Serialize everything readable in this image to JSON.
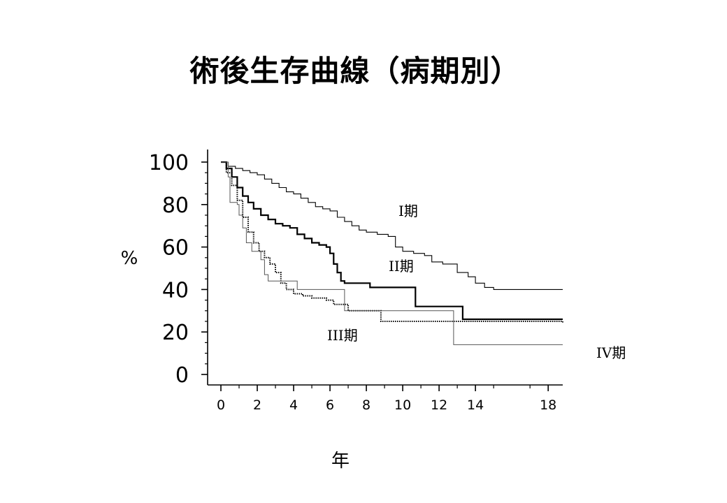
{
  "title": "術後生存曲線（病期別）",
  "chart_data": {
    "type": "line",
    "step": true,
    "title": "術後生存曲線（病期別）",
    "xlabel": "年",
    "ylabel": "%",
    "xlim": [
      0,
      18.8
    ],
    "ylim": [
      0,
      100
    ],
    "x_ticks": [
      0,
      2,
      4,
      6,
      8,
      10,
      12,
      14,
      18
    ],
    "x_tick_labels": [
      "0",
      "2",
      "4",
      "6",
      "8",
      "10",
      "12",
      "14",
      "18"
    ],
    "y_ticks": [
      0,
      20,
      40,
      60,
      80,
      100
    ],
    "y_tick_labels": [
      "0",
      "20",
      "40",
      "60",
      "80",
      "100"
    ],
    "grid": false,
    "legend": "none (inline labels)",
    "series": [
      {
        "name": "I期",
        "color": "#000000",
        "style": "thin-solid",
        "points": [
          [
            0,
            100
          ],
          [
            0.4,
            98
          ],
          [
            0.8,
            97
          ],
          [
            1.2,
            96
          ],
          [
            1.6,
            95
          ],
          [
            2,
            94
          ],
          [
            2.4,
            92
          ],
          [
            2.8,
            90
          ],
          [
            3.2,
            88
          ],
          [
            3.6,
            86
          ],
          [
            4,
            85
          ],
          [
            4.4,
            83
          ],
          [
            4.8,
            81
          ],
          [
            5.2,
            79
          ],
          [
            5.6,
            78
          ],
          [
            6,
            77
          ],
          [
            6.4,
            74
          ],
          [
            6.8,
            72
          ],
          [
            7.2,
            70
          ],
          [
            7.6,
            68
          ],
          [
            8,
            67
          ],
          [
            8.6,
            66
          ],
          [
            9.2,
            65
          ],
          [
            9.6,
            60
          ],
          [
            10,
            58
          ],
          [
            10.6,
            57
          ],
          [
            11.2,
            56
          ],
          [
            11.6,
            53
          ],
          [
            12.2,
            52
          ],
          [
            13,
            48
          ],
          [
            13.6,
            46
          ],
          [
            14,
            43
          ],
          [
            14.5,
            41
          ],
          [
            15,
            40
          ],
          [
            18.8,
            40
          ]
        ]
      },
      {
        "name": "II期",
        "color": "#000000",
        "style": "thick-solid",
        "points": [
          [
            0,
            100
          ],
          [
            0.3,
            97
          ],
          [
            0.6,
            93
          ],
          [
            0.9,
            88
          ],
          [
            1.2,
            84
          ],
          [
            1.5,
            81
          ],
          [
            1.8,
            78
          ],
          [
            2.2,
            75
          ],
          [
            2.6,
            73
          ],
          [
            3,
            71
          ],
          [
            3.4,
            70
          ],
          [
            3.8,
            69
          ],
          [
            4.2,
            66
          ],
          [
            4.6,
            64
          ],
          [
            5,
            62
          ],
          [
            5.4,
            61
          ],
          [
            5.8,
            60
          ],
          [
            6,
            57
          ],
          [
            6.2,
            52
          ],
          [
            6.4,
            48
          ],
          [
            6.6,
            44
          ],
          [
            6.8,
            43
          ],
          [
            8.2,
            41
          ],
          [
            10.6,
            41
          ],
          [
            10.7,
            32
          ],
          [
            13.2,
            32
          ],
          [
            13.3,
            26
          ],
          [
            18.8,
            26
          ]
        ]
      },
      {
        "name": "III期",
        "color": "#000000",
        "style": "dotted",
        "points": [
          [
            0,
            100
          ],
          [
            0.3,
            95
          ],
          [
            0.6,
            89
          ],
          [
            0.9,
            82
          ],
          [
            1.2,
            74
          ],
          [
            1.5,
            67
          ],
          [
            1.8,
            62
          ],
          [
            2.1,
            58
          ],
          [
            2.4,
            55
          ],
          [
            2.7,
            52
          ],
          [
            3,
            48
          ],
          [
            3.3,
            43
          ],
          [
            3.6,
            40
          ],
          [
            4,
            38
          ],
          [
            4.5,
            37
          ],
          [
            5,
            36
          ],
          [
            5.8,
            35
          ],
          [
            6.2,
            33
          ],
          [
            7,
            30
          ],
          [
            8.8,
            25
          ],
          [
            18.8,
            24
          ]
        ]
      },
      {
        "name": "IV期",
        "color": "#555555",
        "style": "thin-gray",
        "points": [
          [
            0,
            100
          ],
          [
            0.4,
            93
          ],
          [
            0.5,
            81
          ],
          [
            0.9,
            80
          ],
          [
            1,
            75
          ],
          [
            1.2,
            69
          ],
          [
            1.4,
            62
          ],
          [
            1.7,
            58
          ],
          [
            2.2,
            54
          ],
          [
            2.4,
            47
          ],
          [
            2.6,
            44
          ],
          [
            4,
            44
          ],
          [
            4.2,
            40
          ],
          [
            6.6,
            40
          ],
          [
            6.8,
            30
          ],
          [
            12.6,
            30
          ],
          [
            12.8,
            14
          ],
          [
            18.8,
            14
          ]
        ]
      }
    ],
    "annotations": [
      "I期",
      "II期",
      "III期",
      "IV期"
    ]
  }
}
